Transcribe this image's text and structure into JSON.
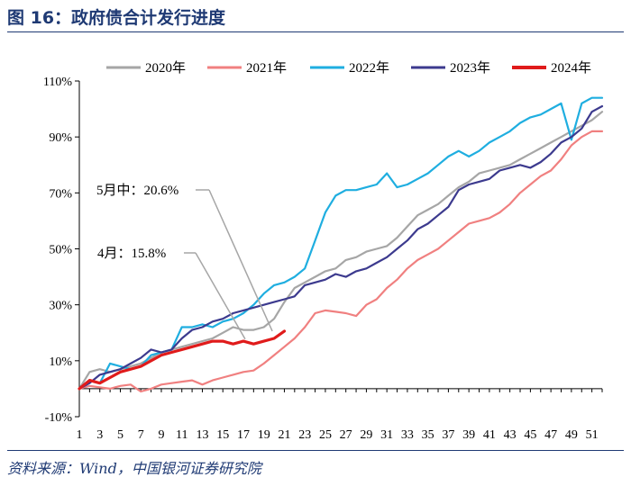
{
  "title": "图 16：政府债合计发行进度",
  "source": "资料来源：Wind，中国银河证券研究院",
  "chart_data": {
    "type": "line",
    "title": "政府债合计发行进度",
    "xlabel": "",
    "ylabel": "",
    "ylim": [
      -10,
      110
    ],
    "yticks": [
      "-10%",
      "10%",
      "30%",
      "50%",
      "70%",
      "90%",
      "110%"
    ],
    "ytick_values": [
      -10,
      10,
      30,
      50,
      70,
      90,
      110
    ],
    "xticks": [
      "1",
      "3",
      "5",
      "7",
      "9",
      "11",
      "13",
      "15",
      "17",
      "19",
      "21",
      "23",
      "25",
      "27",
      "29",
      "31",
      "33",
      "35",
      "37",
      "39",
      "41",
      "43",
      "45",
      "47",
      "49",
      "51"
    ],
    "xtick_values": [
      1,
      3,
      5,
      7,
      9,
      11,
      13,
      15,
      17,
      19,
      21,
      23,
      25,
      27,
      29,
      31,
      33,
      35,
      37,
      39,
      41,
      43,
      45,
      47,
      49,
      51
    ],
    "xlim": [
      1,
      52
    ],
    "grid": false,
    "legend_position": "top",
    "series": [
      {
        "name": "2020年",
        "color": "#a6a6a6",
        "values": [
          0,
          6,
          7,
          6,
          7,
          8,
          9,
          11,
          13,
          14,
          15,
          16,
          17,
          18,
          20,
          22,
          21,
          21,
          22,
          25,
          31,
          36,
          38,
          40,
          42,
          43,
          46,
          47,
          49,
          50,
          51,
          54,
          58,
          62,
          64,
          66,
          69,
          72,
          74,
          77,
          78,
          79,
          80,
          82,
          84,
          86,
          88,
          90,
          92,
          94,
          96,
          99
        ]
      },
      {
        "name": "2021年",
        "color": "#f08080",
        "values": [
          0,
          1,
          0.5,
          0,
          1,
          1.5,
          -1,
          0,
          1.5,
          2,
          2.5,
          3,
          1.5,
          3,
          4,
          5,
          6,
          6.5,
          9,
          12,
          15,
          18,
          22,
          27,
          28,
          27.5,
          27,
          26,
          30,
          32,
          36,
          39,
          43,
          46,
          48,
          50,
          53,
          56,
          59,
          60,
          61,
          63,
          66,
          70,
          73,
          76,
          78,
          82,
          87,
          90,
          92,
          92
        ]
      },
      {
        "name": "2022年",
        "color": "#1faee0",
        "values": [
          0,
          3,
          2,
          9,
          8,
          7,
          8,
          12,
          13,
          14,
          22,
          22,
          23,
          22,
          24,
          25,
          27,
          30,
          34,
          37,
          38,
          40,
          43,
          53,
          63,
          69,
          71,
          71,
          72,
          73,
          77,
          72,
          73,
          75,
          77,
          80,
          83,
          85,
          83,
          85,
          88,
          90,
          92,
          95,
          97,
          98,
          100,
          102,
          89,
          102,
          104,
          104
        ]
      },
      {
        "name": "2023年",
        "color": "#3c3a8e",
        "values": [
          0,
          2,
          5,
          6,
          7,
          9,
          11,
          14,
          13,
          14,
          18,
          21,
          22,
          24,
          25,
          27,
          28,
          29,
          30,
          31,
          32,
          33,
          37,
          38,
          39,
          41,
          40,
          42,
          43,
          45,
          47,
          50,
          53,
          57,
          59,
          62,
          65,
          71,
          73,
          74,
          75,
          78,
          79,
          80,
          79,
          81,
          84,
          88,
          90,
          93,
          99,
          101
        ]
      },
      {
        "name": "2024年",
        "color": "#e01b1b",
        "values": [
          0,
          3,
          2,
          4,
          6,
          7,
          8,
          10,
          12,
          13,
          14,
          15,
          16,
          17,
          17,
          16,
          17,
          16,
          17,
          18,
          20.6
        ]
      }
    ],
    "annotations": [
      {
        "text": "5月中：20.6%",
        "x": 20,
        "y": 20.6
      },
      {
        "text": "4月：15.8%",
        "x": 17,
        "y": 15.8
      }
    ]
  }
}
